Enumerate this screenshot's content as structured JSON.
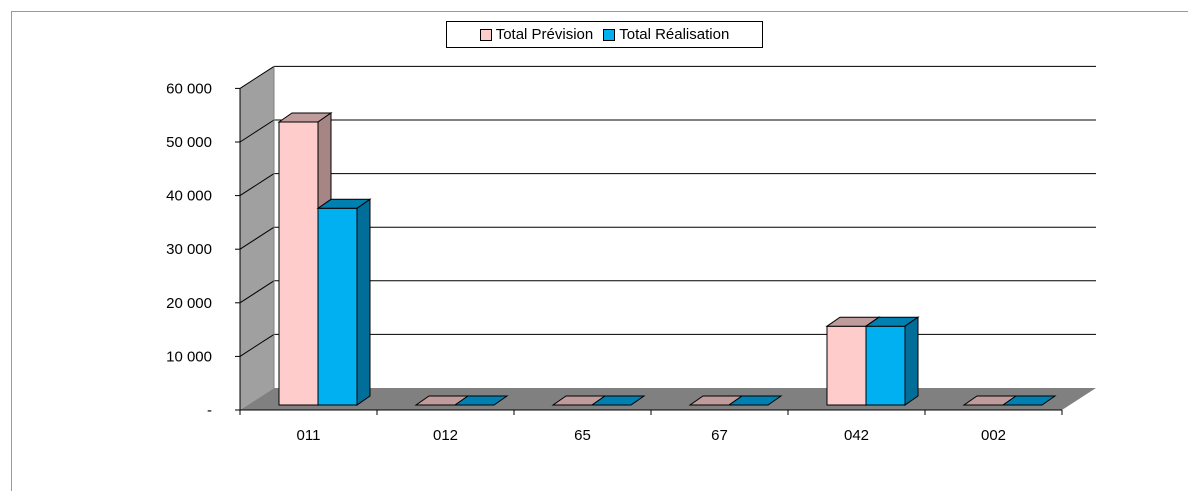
{
  "chart_data": {
    "type": "bar",
    "categories": [
      "011",
      "012",
      "65",
      "67",
      "042",
      "002"
    ],
    "series": [
      {
        "name": "Total Prévision",
        "values": [
          52800,
          0,
          0,
          0,
          14700,
          0
        ],
        "color": "#ffcccc",
        "top_color": "#c09b9b",
        "side_color": "#a68585"
      },
      {
        "name": "Total Réalisation",
        "values": [
          36700,
          0,
          0,
          0,
          14700,
          0
        ],
        "color": "#00b0f0",
        "top_color": "#0080b0",
        "side_color": "#006e98"
      }
    ],
    "yticks": [
      {
        "value": 0,
        "label": "-"
      },
      {
        "value": 10000,
        "label": "10 000"
      },
      {
        "value": 20000,
        "label": "20 000"
      },
      {
        "value": 30000,
        "label": "30 000"
      },
      {
        "value": 40000,
        "label": "40 000"
      },
      {
        "value": 50000,
        "label": "50 000"
      },
      {
        "value": 60000,
        "label": "60 000"
      }
    ],
    "ylim": [
      0,
      60000
    ],
    "title": "",
    "xlabel": "",
    "ylabel": "",
    "grid": true,
    "legend_position": "top-center",
    "wall_color": "#a0a0a0",
    "floor_color": "#808080"
  }
}
